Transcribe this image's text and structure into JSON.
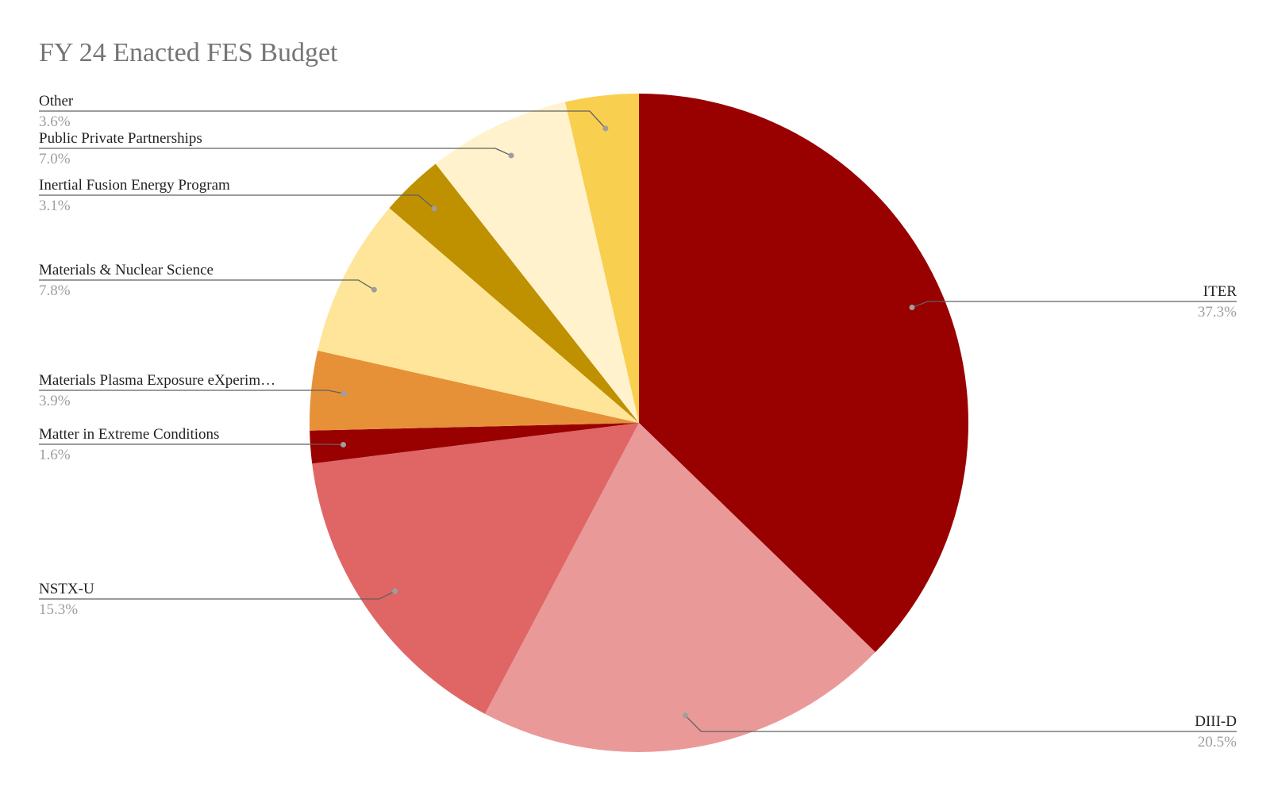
{
  "chart_data": {
    "type": "pie",
    "title": "FY 24 Enacted FES Budget",
    "slices": [
      {
        "label": "ITER",
        "percent": 37.3,
        "percent_label": "37.3%",
        "color": "#990000"
      },
      {
        "label": "DIII-D",
        "percent": 20.5,
        "percent_label": "20.5%",
        "color": "#ea9999"
      },
      {
        "label": "NSTX-U",
        "percent": 15.3,
        "percent_label": "15.3%",
        "color": "#e06666"
      },
      {
        "label": "Matter in Extreme Conditions",
        "percent": 1.6,
        "percent_label": "1.6%",
        "color": "#990000"
      },
      {
        "label": "Materials Plasma Exposure eXperim…",
        "percent": 3.9,
        "percent_label": "3.9%",
        "color": "#e69138"
      },
      {
        "label": "Materials & Nuclear Science",
        "percent": 7.8,
        "percent_label": "7.8%",
        "color": "#ffe599"
      },
      {
        "label": "Inertial Fusion Energy Program",
        "percent": 3.1,
        "percent_label": "3.1%",
        "color": "#bf9000"
      },
      {
        "label": "Public Private Partnerships",
        "percent": 7.0,
        "percent_label": "7.0%",
        "color": "#fff2cc"
      },
      {
        "label": "Other",
        "percent": 3.6,
        "percent_label": "3.6%",
        "color": "#f9cf4f"
      }
    ],
    "start_angle": "12 o'clock",
    "direction": "clockwise",
    "legend": "none",
    "label_style": "leader lines with name and percentage"
  }
}
